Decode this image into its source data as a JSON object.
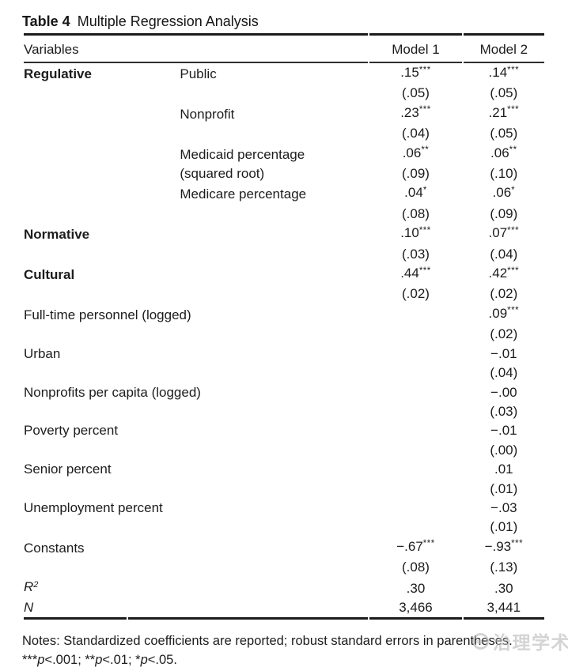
{
  "title": {
    "label": "Table 4",
    "text": "Multiple Regression Analysis"
  },
  "table": {
    "header": {
      "variables": "Variables",
      "model1": "Model 1",
      "model2": "Model 2"
    },
    "rows": [
      {
        "cat": "Regulative",
        "catBold": true,
        "var": "Public",
        "m1": ".15",
        "m1sup": "***",
        "m2": ".14",
        "m2sup": "***"
      },
      {
        "m1": "(.05)",
        "m2": "(.05)"
      },
      {
        "var": "Nonprofit",
        "m1": ".23",
        "m1sup": "***",
        "m2": ".21",
        "m2sup": "***"
      },
      {
        "m1": "(.04)",
        "m2": "(.05)"
      },
      {
        "var": "Medicaid percentage",
        "m1": ".06",
        "m1sup": "**",
        "m2": ".06",
        "m2sup": "**"
      },
      {
        "var": "(squared root)",
        "m1": "(.09)",
        "m2": "(.10)"
      },
      {
        "var": "Medicare percentage",
        "m1": ".04",
        "m1sup": "*",
        "m2": ".06",
        "m2sup": "*"
      },
      {
        "m1": "(.08)",
        "m2": "(.09)"
      },
      {
        "cat": "Normative",
        "catBold": true,
        "m1": ".10",
        "m1sup": "***",
        "m2": ".07",
        "m2sup": "***"
      },
      {
        "m1": "(.03)",
        "m2": "(.04)"
      },
      {
        "cat": "Cultural",
        "catBold": true,
        "m1": ".44",
        "m1sup": "***",
        "m2": ".42",
        "m2sup": "***"
      },
      {
        "m1": "(.02)",
        "m2": "(.02)"
      },
      {
        "cat": "Full-time personnel (logged)",
        "span": true,
        "m2": ".09",
        "m2sup": "***"
      },
      {
        "span": true,
        "m2": "(.02)"
      },
      {
        "cat": "Urban",
        "span": true,
        "m2": "−.01"
      },
      {
        "span": true,
        "m2": "(.04)"
      },
      {
        "cat": "Nonprofits per capita (logged)",
        "span": true,
        "m2": "−.00"
      },
      {
        "span": true,
        "m2": "(.03)"
      },
      {
        "cat": "Poverty percent",
        "span": true,
        "m2": "−.01"
      },
      {
        "span": true,
        "m2": "(.00)"
      },
      {
        "cat": "Senior percent",
        "span": true,
        "m2": ".01"
      },
      {
        "span": true,
        "m2": "(.01)"
      },
      {
        "cat": "Unemployment percent",
        "span": true,
        "m2": "−.03"
      },
      {
        "span": true,
        "m2": "(.01)"
      },
      {
        "cat": "Constants",
        "span": true,
        "m1": "−.67",
        "m1sup": "***",
        "m2": "−.93",
        "m2sup": "***"
      },
      {
        "span": true,
        "m1": "(.08)",
        "m2": "(.13)"
      },
      {
        "cat": "R",
        "catSup": "2",
        "catItalic": true,
        "span": true,
        "m1": ".30",
        "m2": ".30"
      },
      {
        "cat": "N",
        "catItalic": true,
        "span": true,
        "m1": "3,466",
        "m2": "3,441"
      }
    ]
  },
  "notes": {
    "line1": "Notes: Standardized coefficients are reported; robust standard errors in parentheses.",
    "significance": [
      {
        "t": "***"
      },
      {
        "t": "p",
        "i": true
      },
      {
        "t": "<.001; **"
      },
      {
        "t": "p",
        "i": true
      },
      {
        "t": "<.01; *"
      },
      {
        "t": "p",
        "i": true
      },
      {
        "t": "<.05."
      }
    ]
  },
  "watermark": {
    "text": "治理学术",
    "icon": "logo-circle-icon",
    "color": "#b9b9b9"
  },
  "colors": {
    "text": "#1c1c1c",
    "rule": "#1b1b1b",
    "background": "#ffffff"
  }
}
